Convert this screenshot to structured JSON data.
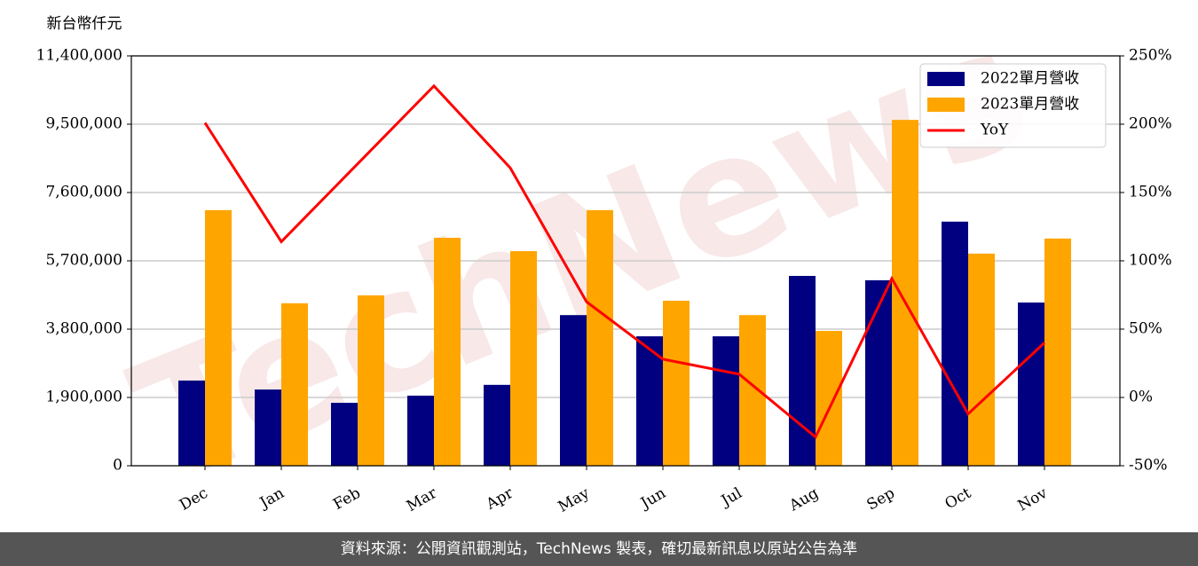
{
  "chart_data": {
    "type": "bar_line",
    "ylabel": "新台幣仟元",
    "categories": [
      "Dec",
      "Jan",
      "Feb",
      "Mar",
      "Apr",
      "May",
      "Jun",
      "Jul",
      "Aug",
      "Sep",
      "Oct",
      "Nov"
    ],
    "series": [
      {
        "name": "2022單月營收",
        "color": "#000080",
        "values": [
          2370000,
          2120000,
          1750000,
          1950000,
          2250000,
          4190000,
          3600000,
          3600000,
          5280000,
          5160000,
          6790000,
          4540000
        ]
      },
      {
        "name": "2023單月營收",
        "color": "#ffa500",
        "values": [
          7110000,
          4520000,
          4740000,
          6340000,
          5970000,
          7110000,
          4590000,
          4190000,
          3750000,
          9620000,
          5900000,
          6320000
        ]
      },
      {
        "name": "YoY",
        "color": "#ff0000",
        "axis": "y2",
        "values": [
          201,
          114,
          171,
          228,
          168,
          70,
          28,
          17,
          -29,
          87,
          -12,
          40
        ]
      }
    ],
    "ylim": [
      0,
      11400000
    ],
    "yticks": [
      0,
      {
        "value": 1900000,
        "label": "1,900,000"
      },
      {
        "value": 3800000,
        "label": "3,800,000"
      },
      {
        "value": 5700000,
        "label": "5,700,000"
      },
      {
        "value": 7600000,
        "label": "7,600,000"
      },
      {
        "value": 9500000,
        "label": "9,500,000"
      },
      {
        "value": 11400000,
        "label": "11,400,000"
      }
    ],
    "y2lim": [
      -50,
      250
    ],
    "y2ticks": [
      {
        "value": -50,
        "label": "-50%"
      },
      {
        "value": 0,
        "label": "0%"
      },
      {
        "value": 50,
        "label": "50%"
      },
      {
        "value": 100,
        "label": "100%"
      },
      {
        "value": 150,
        "label": "150%"
      },
      {
        "value": 200,
        "label": "200%"
      },
      {
        "value": 250,
        "label": "250%"
      }
    ],
    "grid": true,
    "legend": "upper right",
    "watermark": "TechNews",
    "footer": "資料來源：公開資訊觀測站，TechNews 製表，確切最新訊息以原站公告為準"
  }
}
